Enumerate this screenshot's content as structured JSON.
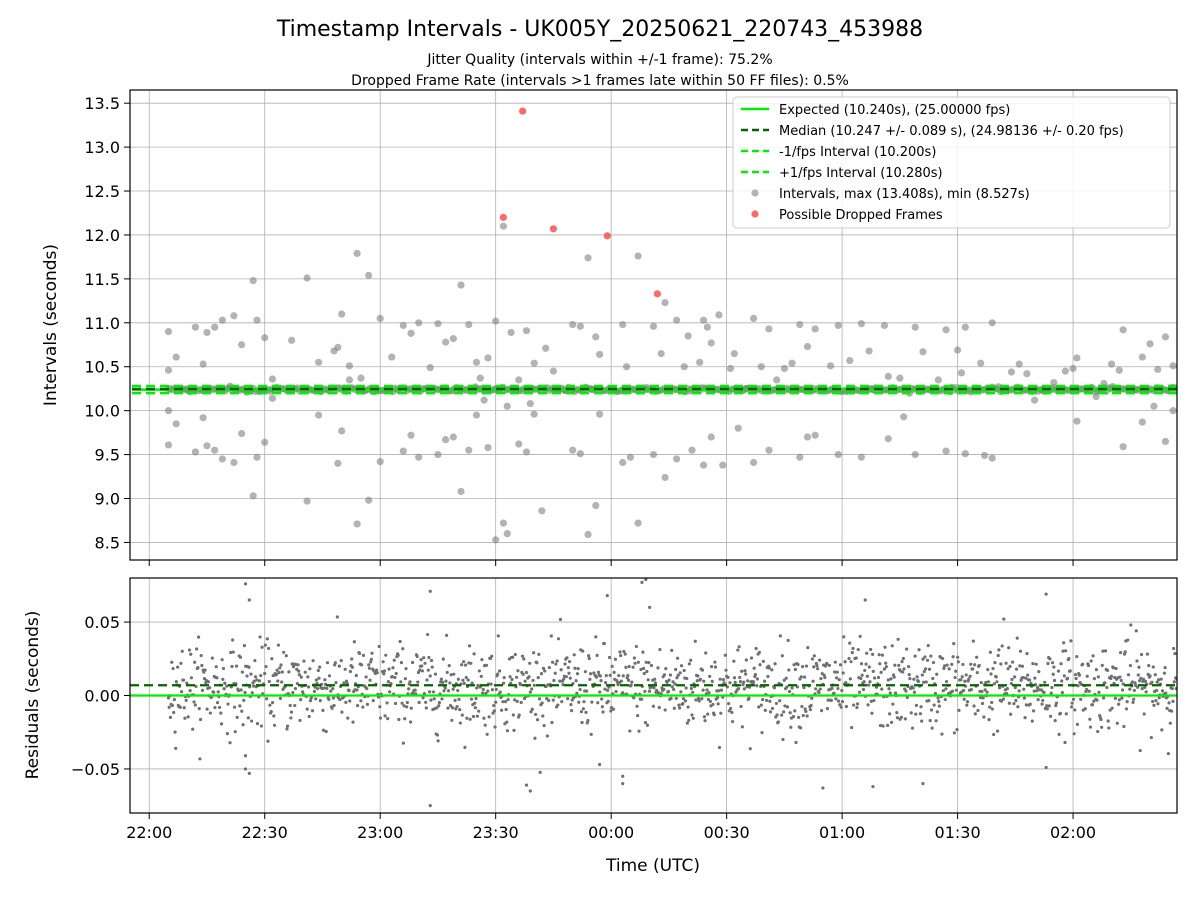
{
  "chart_data": [
    {
      "type": "scatter",
      "title": "Timestamp Intervals - UK005Y_20250621_220743_453988",
      "subtitle_lines": [
        "Jitter Quality (intervals within +/-1 frame): 75.2%",
        "Dropped Frame Rate (intervals >1 frames late within 50 FF files): 0.5%"
      ],
      "ylabel": "Intervals (seconds)",
      "xlim": [
        "21:55",
        "02:27"
      ],
      "ylim": [
        8.3,
        13.65
      ],
      "yticks": [
        8.5,
        9.0,
        9.5,
        10.0,
        10.5,
        11.0,
        11.5,
        12.0,
        12.5,
        13.0,
        13.5
      ],
      "ytick_labels": [
        "8.5",
        "9.0",
        "9.5",
        "10.0",
        "10.5",
        "11.0",
        "11.5",
        "12.0",
        "12.5",
        "13.0",
        "13.5"
      ],
      "grid": true,
      "legend_position": "top-right",
      "lines": [
        {
          "name": "Expected (10.240s), (25.00000 fps)",
          "y": 10.24,
          "color": "#00ee00",
          "style": "solid"
        },
        {
          "name": "Median (10.247 +/- 0.089 s), (24.98136 +/- 0.20 fps)",
          "y": 10.247,
          "color": "#006400",
          "style": "dashed"
        },
        {
          "name": "-1/fps Interval (10.200s)",
          "y": 10.2,
          "color": "#00ee00",
          "style": "dashed"
        },
        {
          "name": "+1/fps Interval (10.280s)",
          "y": 10.28,
          "color": "#00ee00",
          "style": "dashed"
        }
      ],
      "series": [
        {
          "name": "Intervals, max (13.408s), min (8.527s)",
          "color": "#808080",
          "points": [
            [
              "22:05",
              10.9
            ],
            [
              "22:05",
              10.46
            ],
            [
              "22:05",
              10.0
            ],
            [
              "22:05",
              9.61
            ],
            [
              "22:07",
              10.61
            ],
            [
              "22:07",
              9.85
            ],
            [
              "22:10",
              10.23
            ],
            [
              "22:12",
              10.95
            ],
            [
              "22:12",
              9.53
            ],
            [
              "22:14",
              10.53
            ],
            [
              "22:14",
              9.92
            ],
            [
              "22:15",
              10.89
            ],
            [
              "22:15",
              9.6
            ],
            [
              "22:17",
              10.95
            ],
            [
              "22:17",
              9.55
            ],
            [
              "22:19",
              11.03
            ],
            [
              "22:19",
              9.45
            ],
            [
              "22:21",
              10.28
            ],
            [
              "22:22",
              11.08
            ],
            [
              "22:22",
              9.41
            ],
            [
              "22:24",
              10.75
            ],
            [
              "22:24",
              9.74
            ],
            [
              "22:27",
              11.48
            ],
            [
              "22:27",
              9.03
            ],
            [
              "22:28",
              11.03
            ],
            [
              "22:28",
              9.47
            ],
            [
              "22:30",
              10.83
            ],
            [
              "22:30",
              9.64
            ],
            [
              "22:32",
              10.36
            ],
            [
              "22:32",
              10.14
            ],
            [
              "22:37",
              10.8
            ],
            [
              "22:41",
              11.51
            ],
            [
              "22:41",
              8.97
            ],
            [
              "22:44",
              10.55
            ],
            [
              "22:44",
              9.95
            ],
            [
              "22:48",
              10.68
            ],
            [
              "22:49",
              10.72
            ],
            [
              "22:49",
              9.4
            ],
            [
              "22:50",
              11.1
            ],
            [
              "22:50",
              9.77
            ],
            [
              "22:52",
              10.51
            ],
            [
              "22:52",
              10.35
            ],
            [
              "22:54",
              11.79
            ],
            [
              "22:54",
              8.71
            ],
            [
              "22:55",
              10.37
            ],
            [
              "22:55",
              10.23
            ],
            [
              "22:57",
              11.54
            ],
            [
              "22:57",
              8.98
            ],
            [
              "23:00",
              11.05
            ],
            [
              "23:00",
              9.42
            ],
            [
              "23:03",
              10.61
            ],
            [
              "23:06",
              10.97
            ],
            [
              "23:06",
              9.54
            ],
            [
              "23:08",
              10.88
            ],
            [
              "23:08",
              9.72
            ],
            [
              "23:10",
              11.0
            ],
            [
              "23:10",
              9.47
            ],
            [
              "23:13",
              10.49
            ],
            [
              "23:15",
              10.99
            ],
            [
              "23:15",
              9.5
            ],
            [
              "23:17",
              10.78
            ],
            [
              "23:17",
              9.67
            ],
            [
              "23:19",
              10.82
            ],
            [
              "23:19",
              9.7
            ],
            [
              "23:21",
              11.43
            ],
            [
              "23:21",
              9.08
            ],
            [
              "23:23",
              10.98
            ],
            [
              "23:23",
              9.55
            ],
            [
              "23:25",
              10.55
            ],
            [
              "23:25",
              9.95
            ],
            [
              "23:26",
              10.37
            ],
            [
              "23:27",
              10.12
            ],
            [
              "23:28",
              10.6
            ],
            [
              "23:28",
              9.58
            ],
            [
              "23:30",
              11.02
            ],
            [
              "23:30",
              8.53
            ],
            [
              "23:31",
              10.24
            ],
            [
              "23:32",
              12.1
            ],
            [
              "23:32",
              8.72
            ],
            [
              "23:33",
              10.05
            ],
            [
              "23:33",
              8.6
            ],
            [
              "23:34",
              10.89
            ],
            [
              "23:36",
              10.35
            ],
            [
              "23:36",
              9.62
            ],
            [
              "23:38",
              10.91
            ],
            [
              "23:38",
              9.53
            ],
            [
              "23:39",
              10.08
            ],
            [
              "23:40",
              10.54
            ],
            [
              "23:40",
              9.96
            ],
            [
              "23:42",
              8.86
            ],
            [
              "23:43",
              10.71
            ],
            [
              "23:45",
              10.45
            ],
            [
              "23:46",
              10.23
            ],
            [
              "23:48",
              10.23
            ],
            [
              "23:50",
              10.98
            ],
            [
              "23:50",
              9.55
            ],
            [
              "23:52",
              10.96
            ],
            [
              "23:52",
              9.51
            ],
            [
              "23:54",
              11.74
            ],
            [
              "23:54",
              8.59
            ],
            [
              "23:55",
              10.24
            ],
            [
              "23:56",
              10.84
            ],
            [
              "23:56",
              8.92
            ],
            [
              "23:57",
              10.64
            ],
            [
              "23:57",
              9.96
            ],
            [
              "00:01",
              10.23
            ],
            [
              "00:03",
              10.98
            ],
            [
              "00:03",
              9.41
            ],
            [
              "00:04",
              10.5
            ],
            [
              "00:05",
              9.47
            ],
            [
              "00:07",
              11.76
            ],
            [
              "00:07",
              8.72
            ],
            [
              "00:09",
              10.24
            ],
            [
              "00:11",
              10.96
            ],
            [
              "00:11",
              9.5
            ],
            [
              "00:13",
              10.65
            ],
            [
              "00:14",
              11.23
            ],
            [
              "00:14",
              9.24
            ],
            [
              "00:15",
              10.23
            ],
            [
              "00:17",
              11.03
            ],
            [
              "00:17",
              9.45
            ],
            [
              "00:19",
              10.5
            ],
            [
              "00:20",
              10.85
            ],
            [
              "00:21",
              9.55
            ],
            [
              "00:23",
              10.55
            ],
            [
              "00:24",
              11.03
            ],
            [
              "00:24",
              9.38
            ],
            [
              "00:25",
              10.95
            ],
            [
              "00:26",
              10.77
            ],
            [
              "00:26",
              9.7
            ],
            [
              "00:28",
              11.09
            ],
            [
              "00:29",
              9.38
            ],
            [
              "00:31",
              10.48
            ],
            [
              "00:32",
              10.65
            ],
            [
              "00:33",
              9.8
            ],
            [
              "00:35",
              10.25
            ],
            [
              "00:37",
              11.05
            ],
            [
              "00:37",
              9.41
            ],
            [
              "00:39",
              10.5
            ],
            [
              "00:41",
              10.93
            ],
            [
              "00:41",
              9.55
            ],
            [
              "00:43",
              10.35
            ],
            [
              "00:44",
              10.24
            ],
            [
              "00:45",
              10.48
            ],
            [
              "00:47",
              10.54
            ],
            [
              "00:49",
              10.98
            ],
            [
              "00:49",
              9.47
            ],
            [
              "00:51",
              10.73
            ],
            [
              "00:51",
              9.7
            ],
            [
              "00:53",
              10.93
            ],
            [
              "00:53",
              9.72
            ],
            [
              "00:55",
              10.24
            ],
            [
              "00:57",
              10.51
            ],
            [
              "00:59",
              10.97
            ],
            [
              "00:59",
              9.5
            ],
            [
              "01:02",
              10.57
            ],
            [
              "01:05",
              10.99
            ],
            [
              "01:05",
              9.47
            ],
            [
              "01:07",
              10.68
            ],
            [
              "01:08",
              10.24
            ],
            [
              "01:11",
              10.97
            ],
            [
              "01:12",
              10.39
            ],
            [
              "01:12",
              9.68
            ],
            [
              "01:15",
              10.37
            ],
            [
              "01:16",
              9.93
            ],
            [
              "01:19",
              10.95
            ],
            [
              "01:19",
              9.5
            ],
            [
              "01:21",
              10.67
            ],
            [
              "01:23",
              10.24
            ],
            [
              "01:25",
              10.35
            ],
            [
              "01:27",
              10.92
            ],
            [
              "01:27",
              9.54
            ],
            [
              "01:30",
              10.69
            ],
            [
              "01:31",
              10.43
            ],
            [
              "01:32",
              10.95
            ],
            [
              "01:32",
              9.51
            ],
            [
              "01:34",
              10.23
            ],
            [
              "01:36",
              10.54
            ],
            [
              "01:37",
              9.49
            ],
            [
              "01:39",
              11.0
            ],
            [
              "01:39",
              9.46
            ],
            [
              "01:41",
              10.24
            ],
            [
              "01:44",
              10.44
            ],
            [
              "01:46",
              10.53
            ],
            [
              "01:48",
              10.42
            ],
            [
              "01:50",
              10.12
            ],
            [
              "01:52",
              10.24
            ],
            [
              "01:55",
              10.32
            ],
            [
              "01:58",
              10.45
            ],
            [
              "02:00",
              10.48
            ],
            [
              "02:01",
              10.6
            ],
            [
              "02:01",
              9.88
            ],
            [
              "02:04",
              10.24
            ],
            [
              "02:06",
              10.16
            ],
            [
              "02:08",
              10.31
            ],
            [
              "02:10",
              10.53
            ],
            [
              "02:12",
              10.46
            ],
            [
              "02:13",
              10.92
            ],
            [
              "02:13",
              9.59
            ],
            [
              "02:16",
              10.24
            ],
            [
              "02:18",
              10.61
            ],
            [
              "02:18",
              9.87
            ],
            [
              "02:20",
              10.76
            ],
            [
              "02:21",
              10.05
            ],
            [
              "02:22",
              10.47
            ],
            [
              "02:24",
              10.84
            ],
            [
              "02:24",
              9.65
            ],
            [
              "02:26",
              10.51
            ],
            [
              "02:26",
              10.0
            ]
          ]
        },
        {
          "name": "Possible Dropped Frames",
          "color": "#ff4d4d",
          "points": [
            [
              "23:37",
              13.41
            ],
            [
              "23:32",
              12.2
            ],
            [
              "23:45",
              12.07
            ],
            [
              "23:59",
              11.99
            ],
            [
              "00:12",
              11.33
            ]
          ]
        }
      ]
    },
    {
      "type": "scatter",
      "xlabel": "Time (UTC)",
      "ylabel": "Residuals (seconds)",
      "xlim": [
        "21:55",
        "02:27"
      ],
      "ylim": [
        -0.08,
        0.08
      ],
      "xticks": [
        "22:00",
        "22:30",
        "23:00",
        "23:30",
        "00:00",
        "00:30",
        "01:00",
        "01:30",
        "02:00"
      ],
      "yticks": [
        -0.05,
        0.0,
        0.05
      ],
      "ytick_labels": [
        "−0.05",
        "0.00",
        "0.05"
      ],
      "grid": true,
      "lines": [
        {
          "y": 0.0,
          "color": "#00ee00",
          "style": "solid"
        },
        {
          "y": 0.007,
          "color": "#006400",
          "style": "dashed"
        }
      ],
      "series": [
        {
          "color": "#707070",
          "distribution": "dense scatter of ~1600 points between 22:05 and 02:27, centred near 0.005 s with spread of about 0.015 s"
        }
      ],
      "outliers": [
        [
          "22:25",
          0.076
        ],
        [
          "22:26",
          0.065
        ],
        [
          "22:25",
          -0.041
        ],
        [
          "22:25",
          -0.05
        ],
        [
          "22:26",
          -0.053
        ],
        [
          "23:13",
          0.071
        ],
        [
          "23:13",
          -0.075
        ],
        [
          "23:38",
          -0.061
        ],
        [
          "23:39",
          -0.065
        ],
        [
          "23:59",
          0.068
        ],
        [
          "23:57",
          -0.047
        ],
        [
          "00:03",
          -0.06
        ],
        [
          "00:03",
          -0.055
        ],
        [
          "00:08",
          0.077
        ],
        [
          "00:09",
          0.079
        ],
        [
          "00:10",
          0.06
        ],
        [
          "00:55",
          -0.063
        ],
        [
          "01:06",
          0.065
        ],
        [
          "01:08",
          -0.062
        ],
        [
          "01:21",
          -0.06
        ],
        [
          "01:53",
          0.069
        ],
        [
          "01:53",
          -0.049
        ],
        [
          "01:42",
          0.052
        ],
        [
          "02:15",
          0.048
        ]
      ]
    }
  ]
}
